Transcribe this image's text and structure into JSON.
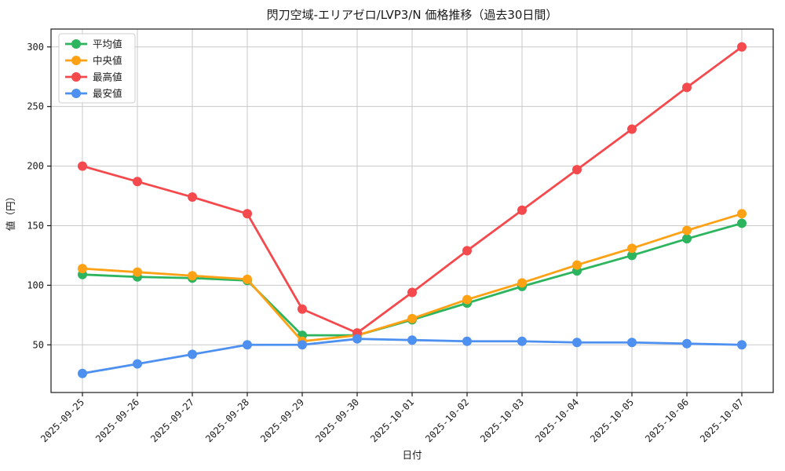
{
  "chart_data": {
    "type": "line",
    "title": "閃刀空域-エリアゼロ/LVP3/N 価格推移（過去30日間）",
    "xlabel": "日付",
    "ylabel": "値（円）",
    "categories": [
      "2025-09-25",
      "2025-09-26",
      "2025-09-27",
      "2025-09-28",
      "2025-09-29",
      "2025-09-30",
      "2025-10-01",
      "2025-10-02",
      "2025-10-03",
      "2025-10-04",
      "2025-10-05",
      "2025-10-06",
      "2025-10-07"
    ],
    "yticks": [
      50,
      100,
      150,
      200,
      250,
      300
    ],
    "ylim": [
      10,
      315
    ],
    "grid": true,
    "legend_position": "upper-left",
    "series": [
      {
        "name": "平均値",
        "key": "average",
        "color": "#2cb55e",
        "values": [
          109,
          107,
          106,
          104,
          58,
          58,
          71,
          85,
          99,
          112,
          125,
          139,
          152
        ]
      },
      {
        "name": "中央値",
        "key": "median",
        "color": "#ffa115",
        "values": [
          114,
          111,
          108,
          105,
          53,
          58,
          72,
          88,
          102,
          117,
          131,
          146,
          160
        ]
      },
      {
        "name": "最高値",
        "key": "max",
        "color": "#f4494d",
        "values": [
          200,
          187,
          174,
          160,
          80,
          60,
          94,
          129,
          163,
          197,
          231,
          266,
          300
        ]
      },
      {
        "name": "最安値",
        "key": "min",
        "color": "#4d90f0",
        "values": [
          26,
          34,
          42,
          50,
          50,
          55,
          54,
          53,
          53,
          52,
          52,
          51,
          50
        ]
      }
    ],
    "colors": {
      "grid": "#c9c9c9",
      "axis": "#1a1a1a",
      "background": "#ffffff",
      "legend_border": "#cccccc"
    }
  }
}
